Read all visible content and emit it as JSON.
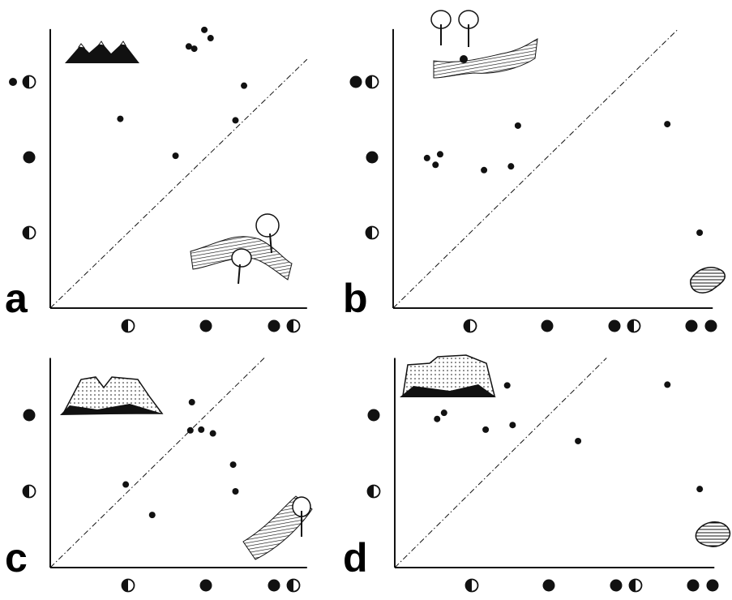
{
  "chart_data": [
    {
      "type": "scatter",
      "title": "a",
      "color": "#111",
      "x": [
        0.9,
        1.61,
        1.78,
        1.85,
        1.98,
        2.06,
        2.38,
        2.49
      ],
      "y": [
        2.51,
        2.02,
        3.47,
        3.44,
        3.69,
        3.58,
        2.49,
        2.95
      ],
      "xlim": [
        0,
        3.3
      ],
      "ylim": [
        0,
        3.7
      ],
      "xticks": [
        1,
        2,
        3
      ],
      "yticks": [
        1,
        2,
        3
      ]
    },
    {
      "type": "scatter",
      "title": "b",
      "color": "#111",
      "x": [
        0.44,
        0.55,
        0.61,
        1.18,
        1.53,
        1.62,
        3.56,
        3.98
      ],
      "y": [
        1.99,
        1.9,
        2.04,
        1.83,
        1.88,
        2.42,
        2.44,
        1.0
      ],
      "xlim": [
        0,
        4.15
      ],
      "ylim": [
        0,
        3.7
      ],
      "xticks": [
        1,
        2,
        3,
        4
      ],
      "yticks": [
        1,
        2,
        3
      ]
    },
    {
      "type": "scatter",
      "title": "c",
      "color": "#111",
      "x": [
        1.82,
        1.8,
        1.94,
        2.09,
        0.97,
        1.31,
        2.35,
        2.38
      ],
      "y": [
        2.17,
        1.8,
        1.81,
        1.76,
        1.09,
        0.69,
        1.35,
        1.0
      ],
      "xlim": [
        0,
        3.3
      ],
      "ylim": [
        0,
        2.75
      ],
      "xticks": [
        1,
        2,
        3
      ],
      "yticks": [
        1,
        2
      ]
    },
    {
      "type": "scatter",
      "title": "d",
      "color": "#111",
      "x": [
        0.55,
        0.64,
        1.18,
        1.46,
        1.53,
        2.38,
        3.54,
        3.96
      ],
      "y": [
        1.95,
        2.03,
        1.81,
        2.39,
        1.87,
        1.66,
        2.4,
        1.03
      ],
      "xlim": [
        0,
        4.15
      ],
      "ylim": [
        0,
        2.75
      ],
      "xticks": [
        1,
        2,
        3,
        4
      ],
      "yticks": [
        1,
        2
      ]
    }
  ]
}
